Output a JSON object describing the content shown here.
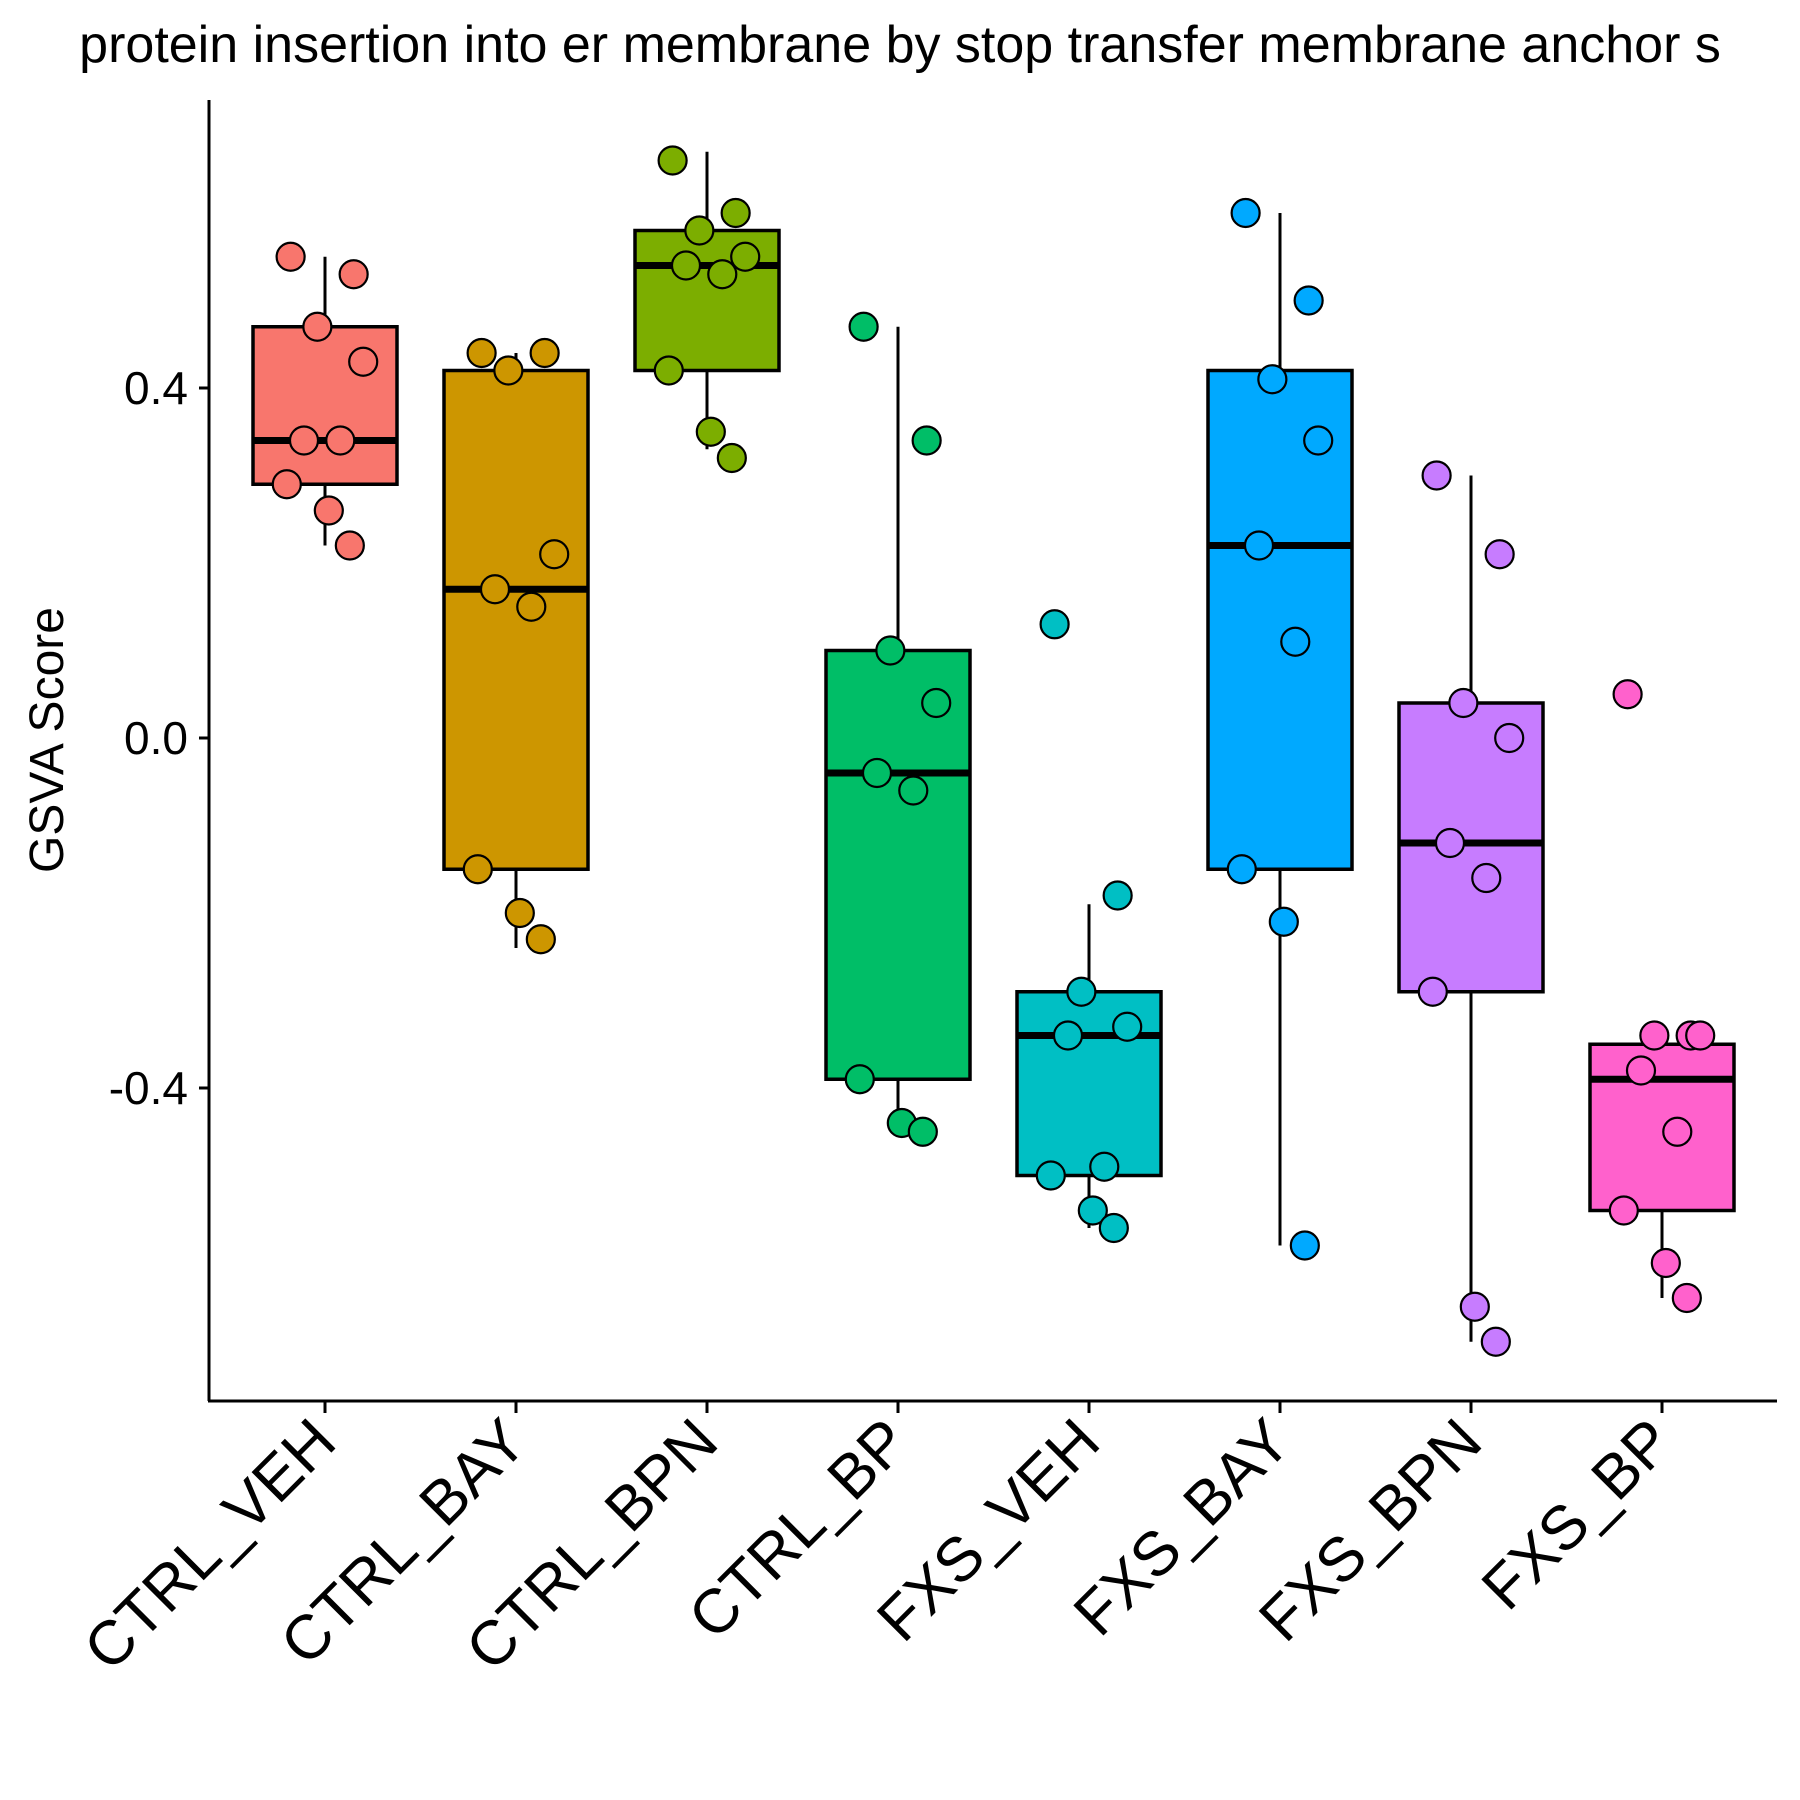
{
  "chart_data": {
    "type": "box",
    "title": "protein insertion into er membrane by stop transfer membrane anchor s",
    "ylabel": "GSVA Score",
    "xlabel": "",
    "ylim": [
      -0.75,
      0.73
    ],
    "yticks": [
      0.4,
      0.0,
      -0.4
    ],
    "ytick_labels": [
      "0.4",
      "0.0",
      "-0.4"
    ],
    "grid": false,
    "legend": "none",
    "categories": [
      "CTRL_VEH",
      "CTRL_BAY",
      "CTRL_BPN",
      "CTRL_BP",
      "FXS_VEH",
      "FXS_BAY",
      "FXS_BPN",
      "FXS_BP"
    ],
    "colors": [
      "#F8766D",
      "#CD9600",
      "#7CAE00",
      "#00BE67",
      "#00BFC4",
      "#00A9FF",
      "#C77CFF",
      "#FF61CC"
    ],
    "boxes": [
      {
        "group": "CTRL_VEH",
        "min": 0.22,
        "q1": 0.29,
        "median": 0.34,
        "q3": 0.47,
        "max": 0.55
      },
      {
        "group": "CTRL_BAY",
        "min": -0.24,
        "q1": -0.15,
        "median": 0.17,
        "q3": 0.42,
        "max": 0.44
      },
      {
        "group": "CTRL_BPN",
        "min": 0.33,
        "q1": 0.42,
        "median": 0.54,
        "q3": 0.58,
        "max": 0.67
      },
      {
        "group": "CTRL_BP",
        "min": -0.45,
        "q1": -0.39,
        "median": -0.04,
        "q3": 0.1,
        "max": 0.47
      },
      {
        "group": "FXS_VEH",
        "min": -0.56,
        "q1": -0.5,
        "median": -0.34,
        "q3": -0.29,
        "max": -0.19
      },
      {
        "group": "FXS_BAY",
        "min": -0.58,
        "q1": -0.15,
        "median": 0.22,
        "q3": 0.42,
        "max": 0.6
      },
      {
        "group": "FXS_BPN",
        "min": -0.69,
        "q1": -0.29,
        "median": -0.12,
        "q3": 0.04,
        "max": 0.3
      },
      {
        "group": "FXS_BP",
        "min": -0.64,
        "q1": -0.54,
        "median": -0.39,
        "q3": -0.35,
        "max": -0.35
      }
    ],
    "points": [
      {
        "group": "CTRL_VEH",
        "dx": 0.0,
        "values": [
          0.55,
          0.53,
          0.47,
          0.43,
          0.34,
          0.34,
          0.29,
          0.26,
          0.22
        ]
      },
      {
        "group": "CTRL_BAY",
        "dx": 0.0,
        "values": [
          0.44,
          0.44,
          0.42,
          0.21,
          0.17,
          0.15,
          -0.15,
          -0.2,
          -0.23
        ]
      },
      {
        "group": "CTRL_BPN",
        "dx": 0.0,
        "values": [
          0.66,
          0.6,
          0.58,
          0.55,
          0.54,
          0.53,
          0.42,
          0.35,
          0.32
        ]
      },
      {
        "group": "CTRL_BP",
        "dx": 0.0,
        "values": [
          0.47,
          0.34,
          0.1,
          0.04,
          -0.04,
          -0.06,
          -0.39,
          -0.44,
          -0.45
        ]
      },
      {
        "group": "FXS_VEH",
        "dx": 0.0,
        "values": [
          0.13,
          -0.18,
          -0.29,
          -0.33,
          -0.34,
          -0.49,
          -0.5,
          -0.54,
          -0.56
        ]
      },
      {
        "group": "FXS_BAY",
        "dx": 0.0,
        "values": [
          0.6,
          0.5,
          0.41,
          0.34,
          0.22,
          0.11,
          -0.15,
          -0.21,
          -0.58
        ]
      },
      {
        "group": "FXS_BPN",
        "dx": 0.0,
        "values": [
          0.3,
          0.21,
          0.04,
          0.0,
          -0.12,
          -0.16,
          -0.29,
          -0.65,
          -0.69
        ]
      },
      {
        "group": "FXS_BP",
        "dx": 0.0,
        "values": [
          0.05,
          -0.34,
          -0.34,
          -0.34,
          -0.38,
          -0.45,
          -0.54,
          -0.6,
          -0.64
        ]
      }
    ]
  }
}
